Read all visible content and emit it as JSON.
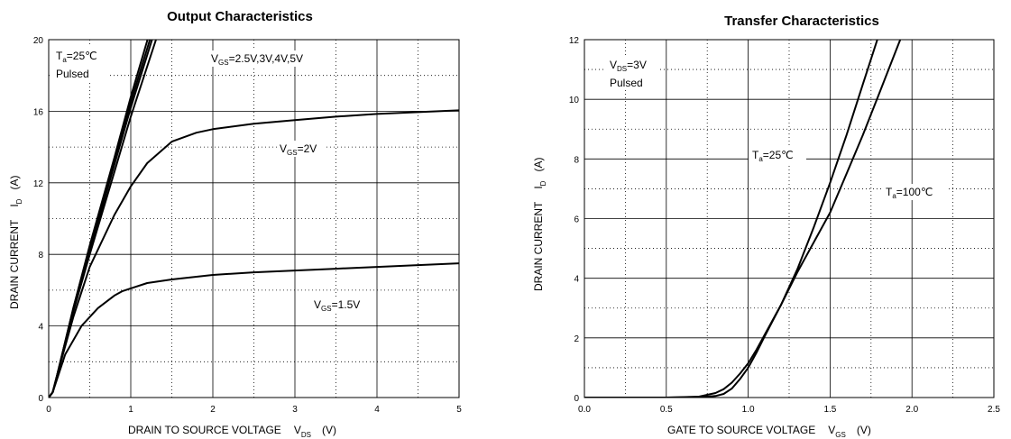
{
  "chart_data": [
    {
      "type": "line",
      "title": "Output Characteristics",
      "xlabel": {
        "main": "DRAIN TO SOURCE VOLTAGE",
        "sym": "V",
        "sub": "DS",
        "unit": "(V)"
      },
      "ylabel": {
        "main": "DRAIN CURRENT",
        "sym": "I",
        "sub": "D",
        "unit": "(A)"
      },
      "xlim": [
        0,
        5
      ],
      "ylim": [
        0,
        20
      ],
      "x_ticks": [
        0,
        1,
        2,
        3,
        4,
        5
      ],
      "y_ticks": [
        0,
        4,
        8,
        12,
        16,
        20
      ],
      "grid": "solid major, dotted minor",
      "annotations": {
        "cond1": {
          "pre": "T",
          "sub": "a",
          "post": "=25℃"
        },
        "cond2": "Pulsed",
        "vgs_high": {
          "pre": "V",
          "sub": "GS",
          "post": "=2.5V,3V,4V,5V"
        },
        "vgs_2": {
          "pre": "V",
          "sub": "GS",
          "post": "=2V"
        },
        "vgs_15": {
          "pre": "V",
          "sub": "GS",
          "post": "=1.5V"
        }
      },
      "series": [
        {
          "x": [
            0,
            0.05,
            0.1,
            0.3,
            0.5,
            0.8,
            1.0,
            1.3,
            1.6
          ],
          "y": [
            0,
            0.3,
            1.2,
            5.0,
            8.5,
            13.4,
            16.8,
            21.5,
            26.2
          ]
        },
        {
          "x": [
            0,
            0.05,
            0.1,
            0.3,
            0.5,
            0.8,
            1.0,
            1.3,
            1.6
          ],
          "y": [
            0,
            0.3,
            1.2,
            5.0,
            8.4,
            13.2,
            16.5,
            21.0,
            25.5
          ]
        },
        {
          "x": [
            0,
            0.05,
            0.1,
            0.3,
            0.5,
            0.8,
            1.0,
            1.3,
            1.6
          ],
          "y": [
            0,
            0.3,
            1.2,
            4.9,
            8.2,
            13.0,
            16.2,
            20.6,
            25.0
          ]
        },
        {
          "x": [
            0,
            0.05,
            0.1,
            0.3,
            0.5,
            0.8,
            1.0,
            1.3,
            1.6
          ],
          "y": [
            0,
            0.3,
            1.2,
            4.8,
            8.0,
            12.6,
            15.7,
            19.9,
            24.0
          ]
        },
        {
          "x": [
            0,
            0.05,
            0.1,
            0.3,
            0.5,
            0.8,
            1.0,
            1.2,
            1.5,
            1.8,
            2.0,
            2.5,
            3.0,
            3.5,
            4.0,
            4.5,
            5.0
          ],
          "y": [
            0,
            0.3,
            1.2,
            4.5,
            7.3,
            10.2,
            11.8,
            13.1,
            14.3,
            14.8,
            15.0,
            15.3,
            15.5,
            15.7,
            15.85,
            15.95,
            16.05
          ]
        },
        {
          "x": [
            0,
            0.05,
            0.1,
            0.2,
            0.4,
            0.6,
            0.8,
            0.9,
            1.0,
            1.2,
            1.5,
            2.0,
            2.5,
            3.0,
            3.5,
            4.0,
            4.5,
            5.0
          ],
          "y": [
            0,
            0.3,
            1.0,
            2.4,
            4.0,
            5.0,
            5.7,
            5.95,
            6.1,
            6.4,
            6.6,
            6.85,
            7.0,
            7.1,
            7.2,
            7.3,
            7.4,
            7.5
          ]
        }
      ]
    },
    {
      "type": "line",
      "title": "Transfer Characteristics",
      "xlabel": {
        "main": "GATE TO SOURCE VOLTAGE",
        "sym": "V",
        "sub": "GS",
        "unit": "(V)"
      },
      "ylabel": {
        "main": "DRAIN CURRENT",
        "sym": "I",
        "sub": "D",
        "unit": "(A)"
      },
      "xlim": [
        0,
        2.5
      ],
      "ylim": [
        0,
        12
      ],
      "x_ticks": [
        "0.0",
        "0.5",
        "1.0",
        "1.5",
        "2.0",
        "2.5"
      ],
      "y_ticks": [
        0,
        2,
        4,
        6,
        8,
        10,
        12
      ],
      "grid": "solid major, dotted minor",
      "annotations": {
        "cond1": {
          "pre": "V",
          "sub": "DS",
          "post": "=3V"
        },
        "cond2": "Pulsed",
        "ta25": {
          "pre": "T",
          "sub": "a",
          "post": "=25℃"
        },
        "ta100": {
          "pre": "T",
          "sub": "a",
          "post": "=100℃"
        }
      },
      "series": [
        {
          "x": [
            0,
            0.5,
            0.7,
            0.8,
            0.85,
            0.9,
            0.95,
            1.0,
            1.05,
            1.1,
            1.2,
            1.3,
            1.4,
            1.5,
            1.6,
            1.7,
            1.8,
            1.85
          ],
          "y": [
            0,
            0,
            0.03,
            0.15,
            0.28,
            0.5,
            0.8,
            1.15,
            1.6,
            2.1,
            3.1,
            4.3,
            5.7,
            7.2,
            8.8,
            10.5,
            12.2,
            13.0
          ]
        },
        {
          "x": [
            0,
            0.5,
            0.7,
            0.8,
            0.85,
            0.9,
            0.95,
            1.0,
            1.05,
            1.1,
            1.2,
            1.3,
            1.4,
            1.5,
            1.6,
            1.7,
            1.8,
            1.9,
            2.0
          ],
          "y": [
            0,
            0,
            0.01,
            0.05,
            0.12,
            0.3,
            0.62,
            1.0,
            1.5,
            2.05,
            3.1,
            4.2,
            5.2,
            6.2,
            7.5,
            8.8,
            10.2,
            11.6,
            13.0
          ]
        }
      ]
    }
  ]
}
